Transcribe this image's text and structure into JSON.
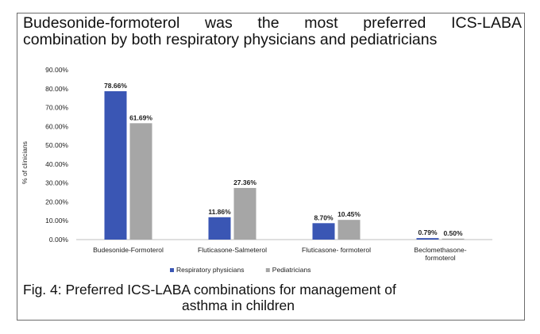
{
  "title_line1": "Budesonide-formoterol was the most preferred ICS-LABA",
  "title_line2": "combination by both respiratory physicians and pediatricians",
  "caption_line1": "Fig. 4: Preferred ICS-LABA combinations for management of",
  "caption_line2": "asthma in children",
  "colors": {
    "respiratory": "#3a56b4",
    "pediatricians": "#a6a6a6",
    "axis": "#bfbfbf",
    "text": "#1c1c1c"
  },
  "chart_data": {
    "type": "bar",
    "title": "Budesonide-formoterol was the most preferred ICS-LABA combination by both respiratory physicians and pediatricians",
    "xlabel": "",
    "ylabel": "% of clinicians",
    "ylim": [
      0,
      90
    ],
    "grid": false,
    "legend_position": "bottom",
    "yticks": [
      "0.00%",
      "10.00%",
      "20.00%",
      "30.00%",
      "40.00%",
      "50.00%",
      "60.00%",
      "70.00%",
      "80.00%",
      "90.00%"
    ],
    "categories": [
      [
        "Budesonide-Formoterol"
      ],
      [
        "Fluticasone-Salmeterol"
      ],
      [
        "Fluticasone- formoterol"
      ],
      [
        "Beclomethasone-",
        "formoterol"
      ]
    ],
    "series": [
      {
        "name": "Respiratory physicians",
        "values": [
          78.66,
          11.86,
          8.7,
          0.79
        ],
        "labels": [
          "78.66%",
          "11.86%",
          "8.70%",
          "0.79%"
        ]
      },
      {
        "name": "Pediatricians",
        "values": [
          61.69,
          27.36,
          10.45,
          0.5
        ],
        "labels": [
          "61.69%",
          "27.36%",
          "10.45%",
          "0.50%"
        ]
      }
    ]
  }
}
